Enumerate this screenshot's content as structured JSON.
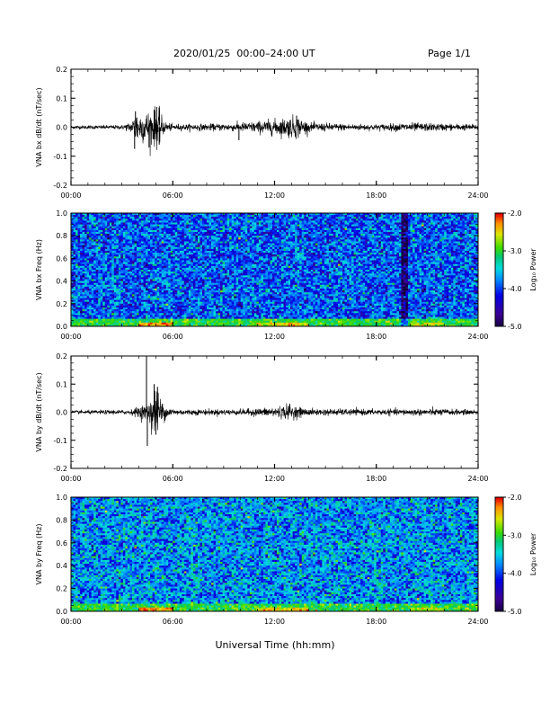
{
  "header": {
    "title": "2020/01/25  00:00–24:00 UT",
    "page": "Page 1/1"
  },
  "x_axis_title": "Universal Time (hh:mm)",
  "chart_data": [
    {
      "type": "line",
      "ylabel": "VNA bx dB/dt (nT/sec)",
      "ylim": [
        -0.2,
        0.2
      ],
      "yticks": [
        "0.2",
        "0.1",
        "0.0",
        "-0.1",
        "-0.2"
      ],
      "xlim": [
        "00:00",
        "24:00"
      ],
      "xticks": [
        "00:00",
        "06:00",
        "12:00",
        "18:00",
        "24:00"
      ],
      "color": "#000000",
      "baseline": 0.0,
      "envelope": [
        {
          "t": 0.0,
          "amp": 0.006
        },
        {
          "t": 3.0,
          "amp": 0.007
        },
        {
          "t": 3.6,
          "amp": 0.02
        },
        {
          "t": 3.8,
          "amp": 0.06
        },
        {
          "t": 4.3,
          "amp": 0.05
        },
        {
          "t": 4.8,
          "amp": 0.06
        },
        {
          "t": 5.1,
          "amp": 0.07
        },
        {
          "t": 5.5,
          "amp": 0.02
        },
        {
          "t": 6.0,
          "amp": 0.01
        },
        {
          "t": 9.0,
          "amp": 0.012
        },
        {
          "t": 10.0,
          "amp": 0.015
        },
        {
          "t": 11.0,
          "amp": 0.02
        },
        {
          "t": 12.5,
          "amp": 0.03
        },
        {
          "t": 13.3,
          "amp": 0.04
        },
        {
          "t": 14.0,
          "amp": 0.015
        },
        {
          "t": 16.0,
          "amp": 0.012
        },
        {
          "t": 18.0,
          "amp": 0.01
        },
        {
          "t": 20.0,
          "amp": 0.015
        },
        {
          "t": 22.0,
          "amp": 0.012
        },
        {
          "t": 24.0,
          "amp": 0.01
        }
      ],
      "spikes": [
        {
          "t": 3.75,
          "v": -0.075
        },
        {
          "t": 3.8,
          "v": 0.055
        },
        {
          "t": 4.6,
          "v": -0.07
        },
        {
          "t": 4.9,
          "v": 0.06
        },
        {
          "t": 5.05,
          "v": 0.07
        },
        {
          "t": 5.2,
          "v": -0.06
        },
        {
          "t": 9.9,
          "v": -0.045
        },
        {
          "t": 13.3,
          "v": 0.04
        }
      ]
    },
    {
      "type": "heatmap",
      "ylabel": "VNA bx Freq (Hz)",
      "ylim": [
        0.0,
        1.0
      ],
      "yticks": [
        "1.0",
        "0.8",
        "0.6",
        "0.4",
        "0.2",
        "0.0"
      ],
      "xlim": [
        "00:00",
        "24:00"
      ],
      "xticks": [
        "00:00",
        "06:00",
        "12:00",
        "18:00",
        "24:00"
      ],
      "colorbar": {
        "label": "Log₁₀ Power",
        "range": [
          -5.0,
          -2.0
        ],
        "ticks": [
          "-2.0",
          "-3.0",
          "-4.0",
          "-5.0"
        ]
      },
      "background_log_power": -3.9,
      "low_freq_enhancements": [
        {
          "t_start": 4.0,
          "t_end": 6.0,
          "log_power": -2.9
        },
        {
          "t_start": 11.0,
          "t_end": 14.0,
          "log_power": -3.1
        },
        {
          "t_start": 20.0,
          "t_end": 22.0,
          "log_power": -3.3
        }
      ],
      "dark_streaks_hours": [
        19.6,
        19.8
      ]
    },
    {
      "type": "line",
      "ylabel": "VNA by dB/dt (nT/sec)",
      "ylim": [
        -0.2,
        0.2
      ],
      "yticks": [
        "0.2",
        "0.1",
        "0.0",
        "-0.1",
        "-0.2"
      ],
      "xlim": [
        "00:00",
        "24:00"
      ],
      "xticks": [
        "00:00",
        "06:00",
        "12:00",
        "18:00",
        "24:00"
      ],
      "color": "#000000",
      "baseline": 0.0,
      "envelope": [
        {
          "t": 0.0,
          "amp": 0.006
        },
        {
          "t": 3.5,
          "amp": 0.008
        },
        {
          "t": 4.0,
          "amp": 0.02
        },
        {
          "t": 4.5,
          "amp": 0.03
        },
        {
          "t": 4.9,
          "amp": 0.09
        },
        {
          "t": 5.2,
          "amp": 0.06
        },
        {
          "t": 5.6,
          "amp": 0.02
        },
        {
          "t": 6.2,
          "amp": 0.01
        },
        {
          "t": 10.0,
          "amp": 0.01
        },
        {
          "t": 11.5,
          "amp": 0.015
        },
        {
          "t": 12.8,
          "amp": 0.025
        },
        {
          "t": 14.0,
          "amp": 0.012
        },
        {
          "t": 18.0,
          "amp": 0.01
        },
        {
          "t": 21.5,
          "amp": 0.012
        },
        {
          "t": 24.0,
          "amp": 0.008
        }
      ],
      "spikes": [
        {
          "t": 4.45,
          "v": 0.2
        },
        {
          "t": 4.5,
          "v": -0.12
        },
        {
          "t": 4.9,
          "v": 0.1
        },
        {
          "t": 5.0,
          "v": -0.08
        },
        {
          "t": 5.1,
          "v": 0.09
        },
        {
          "t": 12.9,
          "v": 0.03
        }
      ]
    },
    {
      "type": "heatmap",
      "ylabel": "VNA by Freq (Hz)",
      "ylim": [
        0.0,
        1.0
      ],
      "yticks": [
        "1.0",
        "0.8",
        "0.6",
        "0.4",
        "0.2",
        "0.0"
      ],
      "xlim": [
        "00:00",
        "24:00"
      ],
      "xticks": [
        "00:00",
        "06:00",
        "12:00",
        "18:00",
        "24:00"
      ],
      "colorbar": {
        "label": "Log₁₀ Power",
        "range": [
          -5.0,
          -2.0
        ],
        "ticks": [
          "-2.0",
          "-3.0",
          "-4.0",
          "-5.0"
        ]
      },
      "background_log_power": -3.7,
      "low_freq_enhancements": [
        {
          "t_start": 4.0,
          "t_end": 6.0,
          "log_power": -2.9
        },
        {
          "t_start": 11.0,
          "t_end": 14.0,
          "log_power": -3.1
        },
        {
          "t_start": 20.0,
          "t_end": 22.0,
          "log_power": -3.3
        }
      ],
      "dark_streaks_hours": []
    }
  ]
}
